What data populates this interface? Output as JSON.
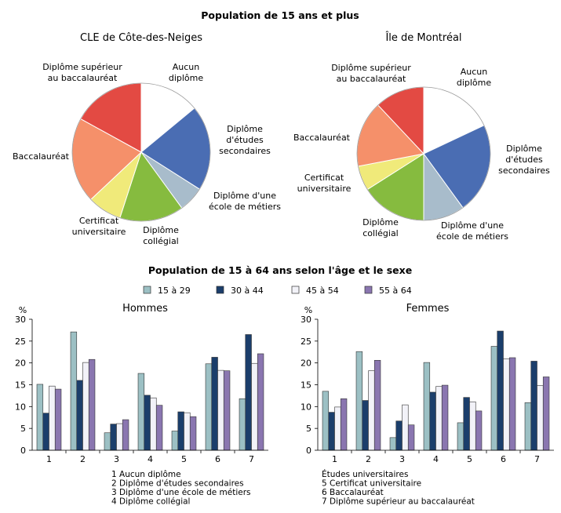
{
  "chart_data": [
    {
      "type": "pie",
      "group_title": "Population de 15 ans et plus",
      "title": "CLE de Côte-des-Neiges",
      "slices": [
        {
          "label": "Aucun diplôme",
          "label_lines": [
            "Aucun",
            "diplôme"
          ],
          "value": 14,
          "color": "#ffffff"
        },
        {
          "label": "Diplôme d'études secondaires",
          "label_lines": [
            "Diplôme",
            "d'études",
            "secondaires"
          ],
          "value": 20,
          "color": "#4a6db3"
        },
        {
          "label": "Diplôme d'une école de métiers",
          "label_lines": [
            "Diplôme d'une",
            "école de métiers"
          ],
          "value": 6,
          "color": "#a8bccb"
        },
        {
          "label": "Diplôme collégial",
          "label_lines": [
            "Diplôme",
            "collégial"
          ],
          "value": 15,
          "color": "#86bb3f"
        },
        {
          "label": "Certificat universitaire",
          "label_lines": [
            "Certificat",
            "universitaire"
          ],
          "value": 8,
          "color": "#f0ea7a"
        },
        {
          "label": "Baccalauréat",
          "label_lines": [
            "Baccalauréat"
          ],
          "value": 20,
          "color": "#f5906a"
        },
        {
          "label": "Diplôme supérieur au baccalauréat",
          "label_lines": [
            "Diplôme supérieur",
            "au baccalauréat"
          ],
          "value": 17,
          "color": "#e34a43"
        }
      ]
    },
    {
      "type": "pie",
      "title": "Île de Montréal",
      "slices": [
        {
          "label": "Aucun diplôme",
          "label_lines": [
            "Aucun",
            "diplôme"
          ],
          "value": 18,
          "color": "#ffffff"
        },
        {
          "label": "Diplôme d'études secondaires",
          "label_lines": [
            "Diplôme",
            "d'études",
            "secondaires"
          ],
          "value": 22,
          "color": "#4a6db3"
        },
        {
          "label": "Diplôme d'une école de métiers",
          "label_lines": [
            "Diplôme d'une",
            "école de métiers"
          ],
          "value": 10,
          "color": "#a8bccb"
        },
        {
          "label": "Diplôme collégial",
          "label_lines": [
            "Diplôme",
            "collégial"
          ],
          "value": 16,
          "color": "#86bb3f"
        },
        {
          "label": "Certificat universitaire",
          "label_lines": [
            "Certificat",
            "universitaire"
          ],
          "value": 6,
          "color": "#f0ea7a"
        },
        {
          "label": "Baccalauréat",
          "label_lines": [
            "Baccalauréat"
          ],
          "value": 16,
          "color": "#f5906a"
        },
        {
          "label": "Diplôme supérieur au baccalauréat",
          "label_lines": [
            "Diplôme supérieur",
            "au baccalauréat"
          ],
          "value": 12,
          "color": "#e34a43"
        }
      ]
    },
    {
      "type": "bar",
      "group_title": "Population de 15 à 64 ans selon l'âge et le sexe",
      "title": "Hommes",
      "ylabel": "%",
      "ylim": [
        0,
        30
      ],
      "yticks": [
        0,
        5,
        10,
        15,
        20,
        25,
        30
      ],
      "categories": [
        "1",
        "2",
        "3",
        "4",
        "5",
        "6",
        "7"
      ],
      "series": [
        {
          "name": "15 à 29",
          "color": "#9cc0c4",
          "values": [
            15.1,
            27.1,
            4.0,
            17.6,
            4.4,
            19.8,
            11.8
          ]
        },
        {
          "name": "30 à 44",
          "color": "#1b3e6b",
          "values": [
            8.5,
            16.0,
            6.0,
            12.6,
            8.8,
            21.3,
            26.5
          ]
        },
        {
          "name": "45 à 54",
          "color": "#f2f2f8",
          "values": [
            14.7,
            20.1,
            6.1,
            12.0,
            8.6,
            18.3,
            19.9
          ]
        },
        {
          "name": "55 à 64",
          "color": "#8a76b0",
          "values": [
            14.0,
            20.8,
            7.0,
            10.3,
            7.7,
            18.2,
            22.1
          ]
        }
      ]
    },
    {
      "type": "bar",
      "title": "Femmes",
      "ylabel": "%",
      "ylim": [
        0,
        30
      ],
      "yticks": [
        0,
        5,
        10,
        15,
        20,
        25,
        30
      ],
      "categories": [
        "1",
        "2",
        "3",
        "4",
        "5",
        "6",
        "7"
      ],
      "series": [
        {
          "name": "15 à 29",
          "color": "#9cc0c4",
          "values": [
            13.5,
            22.6,
            2.9,
            20.1,
            6.3,
            23.8,
            10.9
          ]
        },
        {
          "name": "30 à 44",
          "color": "#1b3e6b",
          "values": [
            8.7,
            11.4,
            6.7,
            13.3,
            12.1,
            27.3,
            20.4
          ]
        },
        {
          "name": "45 à 54",
          "color": "#f2f2f8",
          "values": [
            9.9,
            18.2,
            10.4,
            14.6,
            11.1,
            20.9,
            14.8
          ]
        },
        {
          "name": "55 à 64",
          "color": "#8a76b0",
          "values": [
            11.8,
            20.6,
            5.8,
            14.9,
            9.0,
            21.2,
            16.8
          ]
        }
      ]
    }
  ],
  "notes_left": [
    "1  Aucun diplôme",
    "2  Diplôme d'études secondaires",
    "3  Diplôme d'une école de métiers",
    "4  Diplôme collégial"
  ],
  "notes_right": [
    "Études universitaires",
    "5  Certificat universitaire",
    "6  Baccalauréat",
    "7  Diplôme supérieur au baccalauréat"
  ]
}
